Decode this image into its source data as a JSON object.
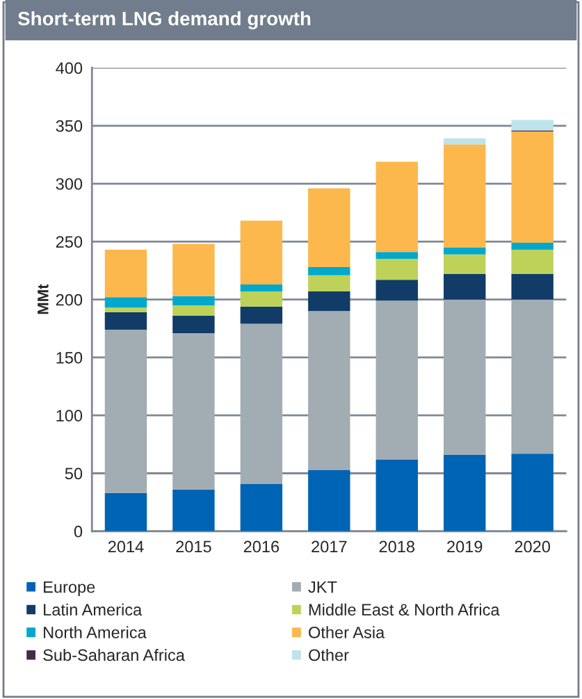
{
  "chart_data": {
    "type": "bar",
    "title": "Short-term LNG demand growth",
    "ylabel": "MMt",
    "stacked": true,
    "categories": [
      "2014",
      "2015",
      "2016",
      "2017",
      "2018",
      "2019",
      "2020"
    ],
    "series": [
      {
        "name": "Europe",
        "color": "#0064b4",
        "values": [
          33,
          36,
          41,
          53,
          62,
          66,
          67
        ]
      },
      {
        "name": "JKT",
        "color": "#a2acb3",
        "values": [
          141,
          135,
          138,
          137,
          137,
          134,
          133
        ]
      },
      {
        "name": "Latin America",
        "color": "#113c68",
        "values": [
          15,
          15,
          15,
          17,
          18,
          22,
          22
        ]
      },
      {
        "name": "Middle East & North Africa",
        "color": "#bed25a",
        "values": [
          4,
          9,
          13,
          14,
          18,
          17,
          21
        ]
      },
      {
        "name": "North America",
        "color": "#00a8cb",
        "values": [
          9,
          8,
          6,
          7,
          6,
          6,
          6
        ]
      },
      {
        "name": "Other Asia",
        "color": "#fcb84d",
        "values": [
          41,
          45,
          55,
          68,
          78,
          89,
          96
        ]
      },
      {
        "name": "Sub-Saharan Africa",
        "color": "#4a2849",
        "values": [
          0,
          0,
          0,
          0,
          0,
          0,
          1
        ]
      },
      {
        "name": "Other",
        "color": "#bce4ea",
        "values": [
          0,
          0,
          0,
          0,
          0,
          5,
          9
        ]
      }
    ],
    "ylim": [
      0,
      400
    ],
    "yticks": [
      0,
      50,
      100,
      150,
      200,
      250,
      300,
      350,
      400
    ],
    "grid": "y",
    "legend": "bottom"
  }
}
